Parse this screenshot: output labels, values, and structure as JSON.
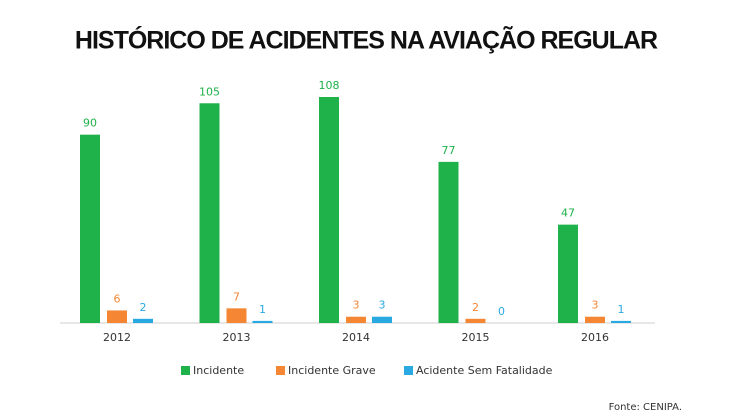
{
  "chart_data": {
    "type": "bar",
    "title": "HISTÓRICO DE ACIDENTES NA AVIAÇÃO REGULAR",
    "categories": [
      "2012",
      "2013",
      "2014",
      "2015",
      "2016"
    ],
    "series": [
      {
        "name": "Incidente",
        "color": "#1fb14a",
        "values": [
          90,
          105,
          108,
          77,
          47
        ]
      },
      {
        "name": "Incidente Grave",
        "color": "#f58634",
        "values": [
          6,
          7,
          3,
          2,
          3
        ]
      },
      {
        "name": "Acidente Sem Fatalidade",
        "color": "#29a9e1",
        "values": [
          2,
          1,
          3,
          0,
          1
        ]
      }
    ],
    "source": "Fonte: CENIPA."
  }
}
